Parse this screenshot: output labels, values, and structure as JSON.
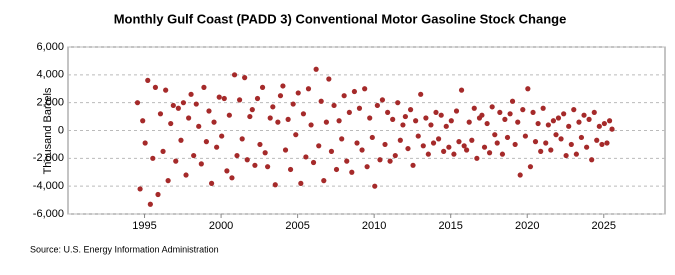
{
  "chart_data": {
    "type": "scatter",
    "title": "Monthly Gulf Coast (PADD 3) Conventional Motor Gasoline Stock Change",
    "y_label": "Thousand Barrels",
    "source": "Source: U.S. Energy Information Administration",
    "color": "#a52a2a",
    "grid": true,
    "xlim": [
      1990,
      2029
    ],
    "xticks": [
      1995,
      2000,
      2005,
      2010,
      2015,
      2020,
      2025
    ],
    "ylim": [
      -6000,
      6000
    ],
    "yticks": [
      {
        "value": -6000,
        "label": "-6,000"
      },
      {
        "value": -4000,
        "label": "-4,000"
      },
      {
        "value": -2000,
        "label": "-2,000"
      },
      0,
      {
        "value": 2000,
        "label": "2,000"
      },
      {
        "value": 4000,
        "label": "4,000"
      },
      {
        "value": 6000,
        "label": "6,000"
      }
    ],
    "x": [
      1994.54,
      1994.71,
      1994.88,
      1995.04,
      1995.21,
      1995.38,
      1995.54,
      1995.71,
      1995.88,
      1996.04,
      1996.21,
      1996.38,
      1996.54,
      1996.71,
      1996.88,
      1997.04,
      1997.21,
      1997.38,
      1997.54,
      1997.71,
      1997.88,
      1998.04,
      1998.21,
      1998.38,
      1998.54,
      1998.71,
      1998.88,
      1999.04,
      1999.21,
      1999.38,
      1999.54,
      1999.71,
      1999.88,
      2000.04,
      2000.21,
      2000.38,
      2000.54,
      2000.71,
      2000.88,
      2001.04,
      2001.21,
      2001.38,
      2001.54,
      2001.71,
      2001.88,
      2002.04,
      2002.21,
      2002.38,
      2002.54,
      2002.71,
      2002.88,
      2003.04,
      2003.21,
      2003.38,
      2003.54,
      2003.71,
      2003.88,
      2004.04,
      2004.21,
      2004.38,
      2004.54,
      2004.71,
      2004.88,
      2005.04,
      2005.21,
      2005.38,
      2005.54,
      2005.71,
      2005.88,
      2006.04,
      2006.21,
      2006.38,
      2006.54,
      2006.71,
      2006.88,
      2007.04,
      2007.21,
      2007.38,
      2007.54,
      2007.71,
      2007.88,
      2008.04,
      2008.21,
      2008.38,
      2008.54,
      2008.71,
      2008.88,
      2009.04,
      2009.21,
      2009.38,
      2009.54,
      2009.71,
      2009.88,
      2010.04,
      2010.21,
      2010.38,
      2010.54,
      2010.71,
      2010.88,
      2011.04,
      2011.21,
      2011.38,
      2011.54,
      2011.71,
      2011.88,
      2012.04,
      2012.21,
      2012.38,
      2012.54,
      2012.71,
      2012.88,
      2013.04,
      2013.21,
      2013.38,
      2013.54,
      2013.71,
      2013.88,
      2014.04,
      2014.21,
      2014.38,
      2014.54,
      2014.71,
      2014.88,
      2015.04,
      2015.21,
      2015.38,
      2015.54,
      2015.71,
      2015.88,
      2016.04,
      2016.21,
      2016.38,
      2016.54,
      2016.71,
      2016.88,
      2017.04,
      2017.21,
      2017.38,
      2017.54,
      2017.71,
      2017.88,
      2018.04,
      2018.21,
      2018.38,
      2018.54,
      2018.71,
      2018.88,
      2019.04,
      2019.21,
      2019.38,
      2019.54,
      2019.71,
      2019.88,
      2020.04,
      2020.21,
      2020.38,
      2020.54,
      2020.71,
      2020.88,
      2021.04,
      2021.21,
      2021.38,
      2021.54,
      2021.71,
      2021.88,
      2022.04,
      2022.21,
      2022.38,
      2022.54,
      2022.71,
      2022.88,
      2023.04,
      2023.21,
      2023.38,
      2023.54,
      2023.71,
      2023.88,
      2024.04,
      2024.21,
      2024.38,
      2024.54,
      2024.71,
      2024.88,
      2025.04,
      2025.21,
      2025.38,
      2025.54
    ],
    "values": [
      2000,
      -4200,
      700,
      -900,
      3600,
      -5300,
      -2000,
      3100,
      -4600,
      1200,
      -1500,
      2900,
      -3600,
      500,
      1800,
      -2200,
      1600,
      -700,
      2000,
      -3200,
      900,
      2600,
      -1800,
      1900,
      300,
      -2400,
      3100,
      -800,
      1400,
      -3800,
      600,
      -1200,
      2400,
      -400,
      2300,
      -2900,
      1100,
      -3400,
      4000,
      -1800,
      2200,
      -600,
      3800,
      -2100,
      1000,
      1500,
      -2500,
      2300,
      -1000,
      3100,
      -1600,
      -2600,
      900,
      1700,
      -3900,
      600,
      2500,
      3200,
      -1400,
      800,
      -2800,
      1900,
      -300,
      2700,
      -3800,
      1200,
      -1900,
      3000,
      400,
      -2300,
      4400,
      -1100,
      2100,
      -3600,
      600,
      3700,
      -1500,
      1800,
      -2800,
      700,
      -600,
      2500,
      -2200,
      1300,
      -3000,
      2800,
      -900,
      1600,
      -1400,
      3000,
      -2600,
      900,
      -500,
      -4000,
      1800,
      -2100,
      2200,
      -1000,
      1300,
      -2200,
      800,
      -1800,
      2000,
      -700,
      400,
      1000,
      -1300,
      1500,
      -2500,
      700,
      -400,
      2600,
      -1100,
      900,
      -1700,
      400,
      -900,
      1300,
      -600,
      1100,
      -1500,
      300,
      -1200,
      700,
      -1700,
      1400,
      -800,
      2900,
      -1100,
      -1400,
      600,
      -700,
      1600,
      -2000,
      900,
      1100,
      -1200,
      500,
      -1600,
      1700,
      -300,
      -900,
      1300,
      -1700,
      800,
      -500,
      1200,
      2100,
      -1000,
      600,
      -3200,
      1500,
      -400,
      3000,
      -2600,
      1300,
      -800,
      500,
      -1500,
      1600,
      -900,
      400,
      -1400,
      700,
      -300,
      900,
      -600,
      1200,
      -1800,
      300,
      -1000,
      1500,
      -1700,
      600,
      -500,
      1100,
      -1200,
      800,
      -2100,
      1300,
      -700,
      300,
      -1000,
      500,
      -900,
      700,
      100
    ]
  }
}
